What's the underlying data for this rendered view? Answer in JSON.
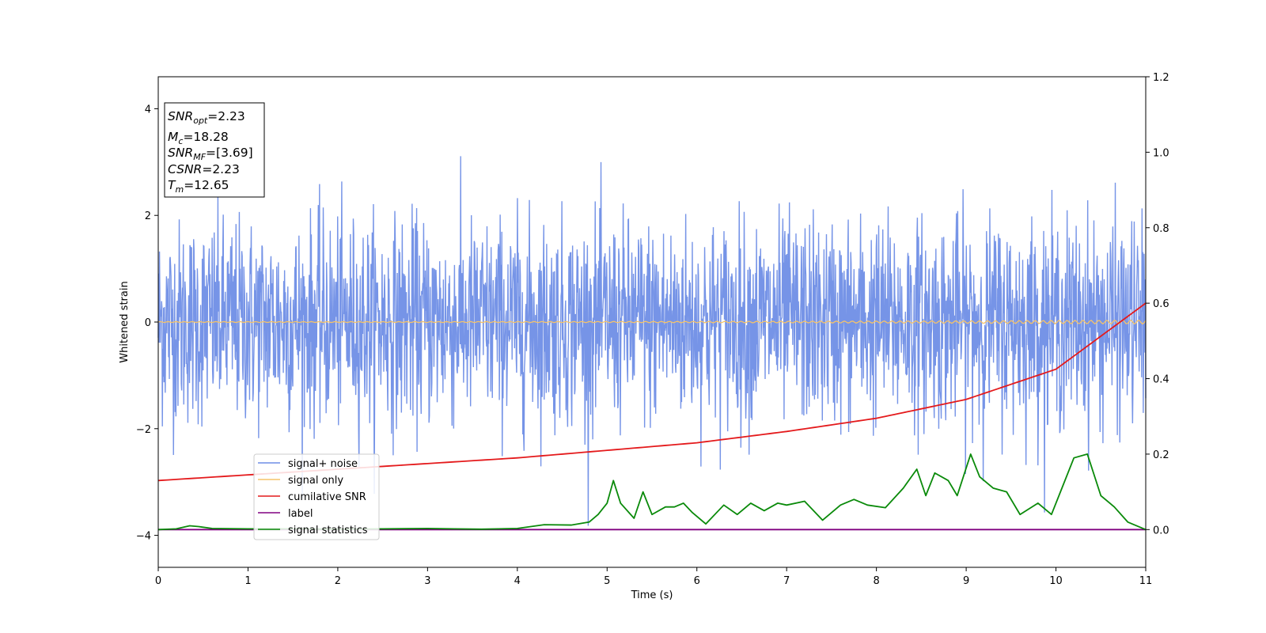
{
  "chart_data": {
    "type": "line",
    "xlabel": "Time (s)",
    "ylabel": "Whitened strain",
    "xlim": [
      0,
      11
    ],
    "ylim_left": [
      -4.6,
      4.6
    ],
    "ylim_right": [
      -0.1,
      1.2
    ],
    "x_ticks": [
      "0",
      "1",
      "2",
      "3",
      "4",
      "5",
      "6",
      "7",
      "8",
      "9",
      "10",
      "11"
    ],
    "y_ticks_left": [
      "−4",
      "−2",
      "0",
      "2",
      "4"
    ],
    "y_ticks_right": [
      "0.0",
      "0.2",
      "0.4",
      "0.6",
      "0.8",
      "1.0",
      "1.2"
    ],
    "grid": false,
    "legend_position": "lower-left",
    "colors": {
      "noise": "#6f8ee6",
      "signal": "#f5c36a",
      "snr": "#e41a1c",
      "label": "#800080",
      "stats": "#0a8a0a"
    },
    "series": [
      {
        "name": "signal+ noise",
        "axis": "left",
        "description_style": "dense noise",
        "range": [
          -4.15,
          4.15
        ]
      },
      {
        "name": "signal only",
        "axis": "left",
        "values": [
          0,
          0
        ]
      },
      {
        "name": "cumilative SNR",
        "axis": "right",
        "x": [
          0,
          1,
          2,
          3,
          4,
          5,
          6,
          7,
          8,
          9,
          10,
          11
        ],
        "values": [
          0.13,
          0.145,
          0.16,
          0.175,
          0.19,
          0.21,
          0.23,
          0.26,
          0.295,
          0.345,
          0.425,
          0.6
        ]
      },
      {
        "name": "label",
        "axis": "right",
        "x": [
          0,
          11
        ],
        "values": [
          0,
          0
        ]
      },
      {
        "name": "signal statistics",
        "axis": "right",
        "x": [
          0,
          0.2,
          0.35,
          0.45,
          0.6,
          1.0,
          1.5,
          2.0,
          2.5,
          3.0,
          3.3,
          3.6,
          4.0,
          4.3,
          4.6,
          4.8,
          4.9,
          5.0,
          5.07,
          5.15,
          5.3,
          5.4,
          5.5,
          5.65,
          5.75,
          5.85,
          5.95,
          6.1,
          6.3,
          6.45,
          6.6,
          6.75,
          6.9,
          7.0,
          7.2,
          7.4,
          7.6,
          7.75,
          7.9,
          8.1,
          8.3,
          8.45,
          8.55,
          8.65,
          8.8,
          8.9,
          9.05,
          9.15,
          9.3,
          9.45,
          9.6,
          9.8,
          9.95,
          10.05,
          10.2,
          10.35,
          10.5,
          10.65,
          10.8,
          11.0
        ],
        "values": [
          0,
          0.002,
          0.01,
          0.008,
          0.003,
          0.002,
          0.002,
          0.001,
          0.002,
          0.003,
          0.002,
          0.001,
          0.003,
          0.013,
          0.012,
          0.02,
          0.04,
          0.07,
          0.13,
          0.07,
          0.03,
          0.1,
          0.04,
          0.06,
          0.06,
          0.07,
          0.045,
          0.015,
          0.065,
          0.04,
          0.07,
          0.05,
          0.07,
          0.065,
          0.075,
          0.025,
          0.065,
          0.08,
          0.065,
          0.058,
          0.11,
          0.16,
          0.09,
          0.15,
          0.13,
          0.09,
          0.2,
          0.14,
          0.11,
          0.1,
          0.04,
          0.07,
          0.04,
          0.1,
          0.19,
          0.2,
          0.09,
          0.06,
          0.02,
          0
        ]
      }
    ],
    "annotation": {
      "snr_opt_value": "=2.23",
      "mc_value": "=18.28",
      "snr_mf_value": "=[3.69]",
      "csnr_value": "=2.23",
      "tm_value": "=12.65"
    }
  }
}
